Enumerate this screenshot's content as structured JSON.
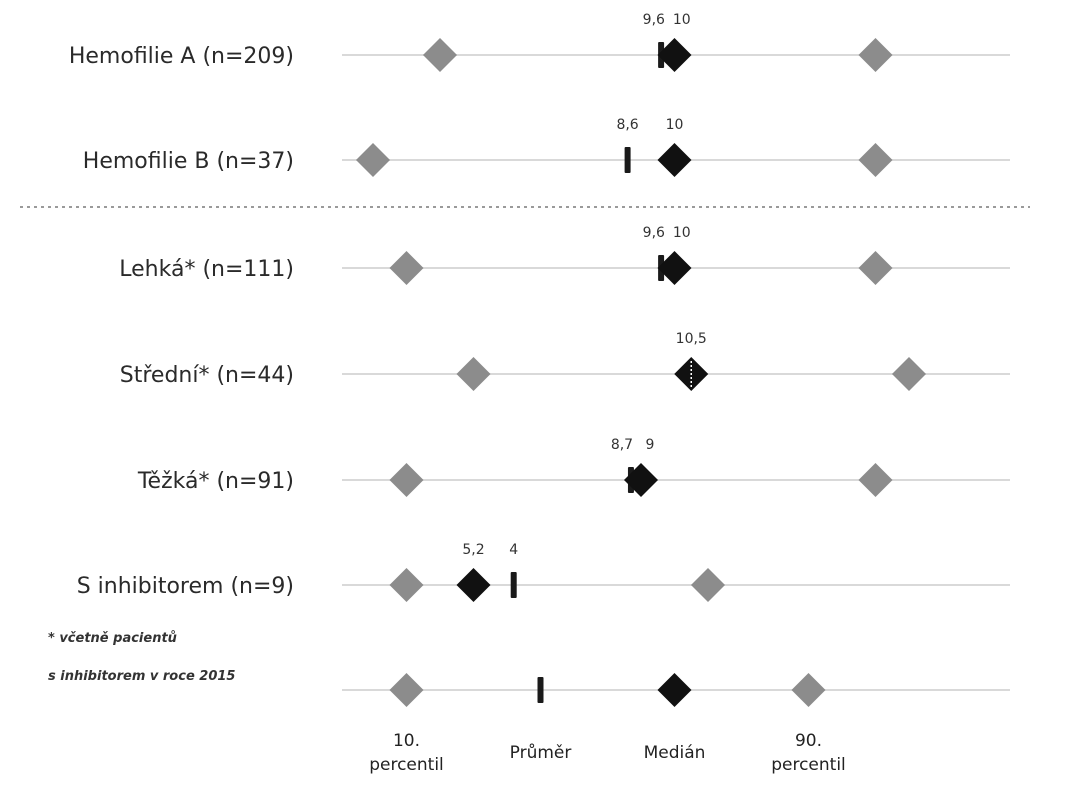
{
  "chart_data": {
    "type": "dot-range",
    "colors": {
      "percentile": "#8c8c8c",
      "median": "#111111",
      "mean": "#1a1a1a",
      "grid": "#d9d9d9",
      "separator": "#9a9a9a"
    },
    "rows": [
      {
        "label": "Hemofilie A (n=209)",
        "p10": 3,
        "mean": 9.6,
        "median": 10,
        "p90": 16,
        "labels": [
          "9,6",
          "10"
        ]
      },
      {
        "label": "Hemofilie B (n=37)",
        "p10": 1,
        "mean": 8.6,
        "median": 10,
        "p90": 16,
        "labels": [
          "8,6",
          "10"
        ]
      },
      {
        "label": "Lehká* (n=111)",
        "p10": 2,
        "mean": 9.6,
        "median": 10,
        "p90": 16,
        "labels": [
          "9,6",
          "10"
        ]
      },
      {
        "label": "Střední* (n=44)",
        "p10": 4,
        "mean": 10.5,
        "median": 10.5,
        "p90": 17,
        "labels": [
          "10,5"
        ]
      },
      {
        "label": "Těžká* (n=91)",
        "p10": 2,
        "mean": 8.7,
        "median": 9,
        "p90": 16,
        "labels": [
          "8,7",
          "9"
        ]
      },
      {
        "label": "S inhibitorem (n=9)",
        "p10": 2,
        "mean": 5.2,
        "median": 4,
        "p90": 11,
        "labels": [
          "4",
          "5,2"
        ]
      }
    ],
    "note_lines": [
      "* včetně pacientů",
      "s inhibitorem v roce 2015"
    ],
    "legend": {
      "p10_label_lines": [
        "10.",
        "percentil"
      ],
      "mean_label": "Průměr",
      "median_label": "Medián",
      "p90_label_lines": [
        "90.",
        "percentil"
      ]
    }
  }
}
